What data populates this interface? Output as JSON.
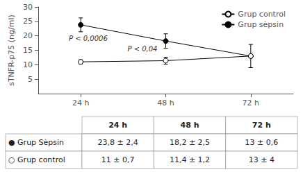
{
  "chart_data": {
    "type": "line",
    "ylabel": "sTNFR-p75 (ng/ml)",
    "categories": [
      "24 h",
      "48 h",
      "72 h"
    ],
    "series": [
      {
        "name": "Grup sèpsin",
        "color": "#000000",
        "marker": "circle",
        "values": [
          23.8,
          18.2,
          13.0
        ],
        "errors": [
          2.4,
          2.5,
          0.6
        ]
      },
      {
        "name": "Grup control",
        "color": "#000000",
        "marker": "open_circle",
        "values": [
          11.0,
          11.4,
          13.0
        ],
        "errors": [
          0.7,
          1.2,
          4.0
        ]
      }
    ],
    "ylim": [
      0,
      30
    ],
    "yticks": [
      5,
      10,
      15,
      20,
      25,
      30
    ],
    "grid": false,
    "legend": "upper right",
    "annotations": [
      {
        "text": "P < 0,0006"
      },
      {
        "text": "P < 0,04"
      }
    ],
    "table": {
      "columns": [
        "24 h",
        "48 h",
        "72 h"
      ],
      "rows": [
        {
          "label": "● Grup Sèpsin",
          "cells": [
            "23,8 ± 2,4",
            "18,2 ± 2,5",
            "13 ± 0,6"
          ]
        },
        {
          "label": "○ Grup control",
          "cells": [
            "11 ± 0,7",
            "11,4 ± 1,2",
            "13 ± 4"
          ]
        }
      ]
    }
  }
}
